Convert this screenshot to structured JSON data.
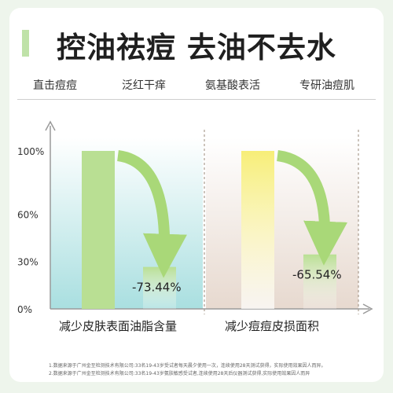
{
  "headline": "控油祛痘 去油不去水",
  "features": [
    "直击痘痘",
    "泛红干痒",
    "氨基酸表活",
    "专研油痘肌"
  ],
  "chart_data": {
    "type": "bar",
    "ylim": [
      0,
      100
    ],
    "yticks": [
      {
        "value": 0,
        "label": "0%"
      },
      {
        "value": 30,
        "label": "30%"
      },
      {
        "value": 60,
        "label": "60%"
      },
      {
        "value": 100,
        "label": "100%"
      }
    ],
    "panels": [
      {
        "category": "减少皮肤表面油脂含量",
        "before": 100,
        "after": 26.56,
        "change_label": "-73.44%"
      },
      {
        "category": "减少痘痘皮损面积",
        "before": 100,
        "after": 34.46,
        "change_label": "-65.54%"
      }
    ]
  },
  "footnotes": [
    "1.数据来源于广州金至检测技术有限公司:33名19-43岁受试者每天晨夕使用一次，连续使用28天测试获得，实际使用效果因人而异。",
    "2.数据来源于广州金至检测技术有限公司:33名19-43岁氨肤敏感受试者,连续使用28天后仪器测试获得,实际使用效果因人而异"
  ],
  "colors": {
    "green_bar": "#b9df93",
    "green_bar_light": "#d8efbe",
    "yellow_bar": "#f7ee78",
    "panel1_top": "#ffffff",
    "panel1_bottom": "#a9dfe0",
    "panel2_top": "#ffffff",
    "panel2_bottom": "#e7d9cf",
    "arrow": "#a9d878",
    "axis": "#9a9a9a"
  }
}
